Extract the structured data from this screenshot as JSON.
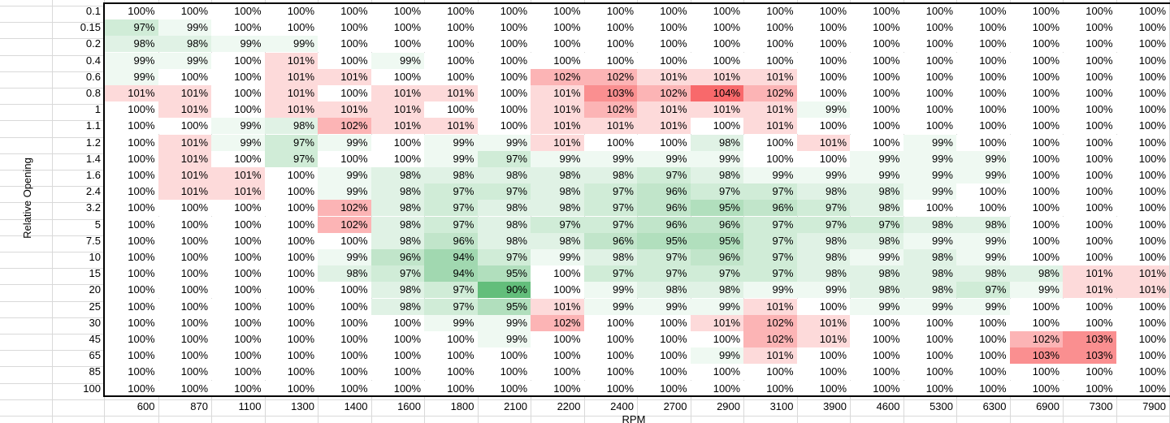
{
  "axes": {
    "y_title": "Relative Opening",
    "x_title": "RPM"
  },
  "colors": {
    "green": "#63be7b",
    "white": "#ffffff",
    "red": "#f8696b",
    "gridline": "#d9d9d9"
  },
  "chart_data": {
    "type": "heatmap",
    "title": "",
    "xlabel": "RPM",
    "ylabel": "Relative Opening",
    "color_scale": {
      "min": "green",
      "mid": "white",
      "max": "red"
    },
    "x": [
      "600",
      "870",
      "1100",
      "1300",
      "1400",
      "1600",
      "1800",
      "2100",
      "2200",
      "2400",
      "2700",
      "2900",
      "3100",
      "3900",
      "4600",
      "5300",
      "6300",
      "6900",
      "7300",
      "7900"
    ],
    "y": [
      "0.1",
      "0.15",
      "0.2",
      "0.4",
      "0.6",
      "0.8",
      "1",
      "1.1",
      "1.2",
      "1.4",
      "1.6",
      "2.4",
      "3.2",
      "5",
      "7.5",
      "10",
      "15",
      "20",
      "25",
      "30",
      "45",
      "65",
      "85",
      "100"
    ],
    "values": [
      [
        100,
        100,
        100,
        100,
        100,
        100,
        100,
        100,
        100,
        100,
        100,
        100,
        100,
        100,
        100,
        100,
        100,
        100,
        100,
        100
      ],
      [
        97,
        99,
        100,
        100,
        100,
        100,
        100,
        100,
        100,
        100,
        100,
        100,
        100,
        100,
        100,
        100,
        100,
        100,
        100,
        100
      ],
      [
        98,
        98,
        99,
        99,
        100,
        100,
        100,
        100,
        100,
        100,
        100,
        100,
        100,
        100,
        100,
        100,
        100,
        100,
        100,
        100
      ],
      [
        99,
        99,
        100,
        101,
        100,
        99,
        100,
        100,
        100,
        100,
        100,
        100,
        100,
        100,
        100,
        100,
        100,
        100,
        100,
        100
      ],
      [
        99,
        100,
        100,
        101,
        101,
        100,
        100,
        100,
        102,
        102,
        101,
        101,
        101,
        100,
        100,
        100,
        100,
        100,
        100,
        100
      ],
      [
        101,
        101,
        100,
        101,
        100,
        101,
        101,
        100,
        101,
        103,
        102,
        104,
        102,
        100,
        100,
        100,
        100,
        100,
        100,
        100
      ],
      [
        100,
        101,
        100,
        101,
        101,
        101,
        100,
        100,
        101,
        102,
        101,
        101,
        101,
        99,
        100,
        100,
        100,
        100,
        100,
        100
      ],
      [
        100,
        100,
        99,
        98,
        102,
        101,
        101,
        100,
        101,
        101,
        101,
        100,
        101,
        100,
        100,
        100,
        100,
        100,
        100,
        100
      ],
      [
        100,
        101,
        99,
        97,
        99,
        100,
        99,
        99,
        101,
        100,
        100,
        98,
        100,
        101,
        100,
        99,
        100,
        100,
        100,
        100
      ],
      [
        100,
        101,
        100,
        97,
        100,
        100,
        99,
        97,
        99,
        99,
        99,
        99,
        100,
        100,
        99,
        99,
        99,
        100,
        100,
        100
      ],
      [
        100,
        101,
        101,
        100,
        99,
        98,
        98,
        98,
        98,
        98,
        97,
        98,
        99,
        99,
        99,
        99,
        99,
        100,
        100,
        100
      ],
      [
        100,
        101,
        101,
        100,
        99,
        98,
        97,
        97,
        98,
        97,
        96,
        97,
        97,
        98,
        98,
        99,
        100,
        100,
        100,
        100
      ],
      [
        100,
        100,
        100,
        100,
        102,
        98,
        97,
        98,
        98,
        97,
        96,
        95,
        96,
        97,
        98,
        100,
        100,
        100,
        100,
        100
      ],
      [
        100,
        100,
        100,
        100,
        102,
        98,
        97,
        98,
        97,
        97,
        96,
        96,
        97,
        97,
        97,
        98,
        98,
        100,
        100,
        100
      ],
      [
        100,
        100,
        100,
        100,
        100,
        98,
        96,
        98,
        98,
        96,
        95,
        95,
        97,
        98,
        98,
        99,
        99,
        100,
        100,
        100
      ],
      [
        100,
        100,
        100,
        100,
        99,
        96,
        94,
        97,
        99,
        98,
        97,
        96,
        97,
        98,
        99,
        98,
        99,
        100,
        100,
        100
      ],
      [
        100,
        100,
        100,
        100,
        98,
        97,
        94,
        95,
        100,
        97,
        97,
        97,
        97,
        98,
        98,
        98,
        98,
        98,
        101,
        101
      ],
      [
        100,
        100,
        100,
        100,
        100,
        98,
        97,
        90,
        100,
        99,
        98,
        98,
        99,
        99,
        98,
        98,
        97,
        99,
        101,
        101
      ],
      [
        100,
        100,
        100,
        100,
        100,
        98,
        97,
        95,
        101,
        99,
        99,
        99,
        101,
        100,
        99,
        99,
        99,
        100,
        100,
        100
      ],
      [
        100,
        100,
        100,
        100,
        100,
        100,
        99,
        99,
        102,
        100,
        100,
        101,
        102,
        101,
        100,
        100,
        100,
        100,
        100,
        100
      ],
      [
        100,
        100,
        100,
        100,
        100,
        100,
        100,
        99,
        100,
        100,
        100,
        100,
        102,
        101,
        100,
        100,
        100,
        102,
        103,
        100
      ],
      [
        100,
        100,
        100,
        100,
        100,
        100,
        100,
        100,
        100,
        100,
        100,
        99,
        101,
        100,
        100,
        100,
        100,
        103,
        103,
        100
      ],
      [
        100,
        100,
        100,
        100,
        100,
        100,
        100,
        100,
        100,
        100,
        100,
        100,
        100,
        100,
        100,
        100,
        100,
        100,
        100,
        100
      ],
      [
        100,
        100,
        100,
        100,
        100,
        100,
        100,
        100,
        100,
        100,
        100,
        100,
        100,
        100,
        100,
        100,
        100,
        100,
        100,
        100
      ]
    ],
    "value_format": "percent"
  }
}
